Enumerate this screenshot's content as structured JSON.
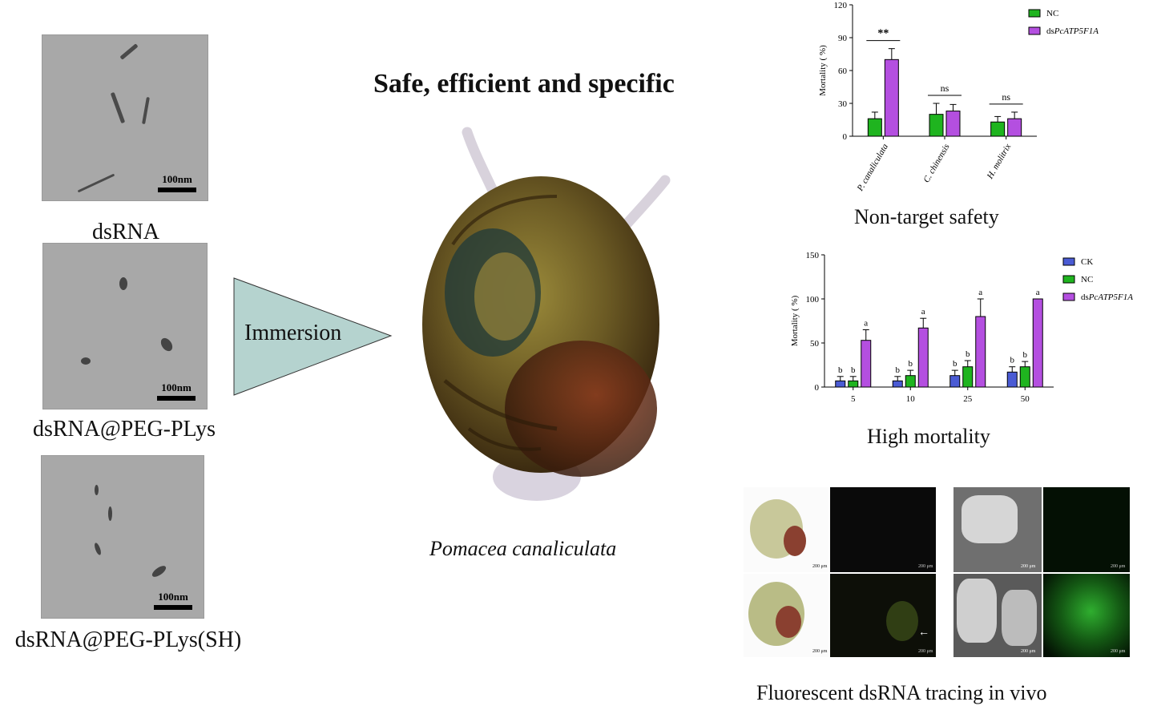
{
  "tem_panels": [
    {
      "label": "dsRNA",
      "scale": "100nm"
    },
    {
      "label": "dsRNA@PEG-PLys",
      "scale": "100nm"
    },
    {
      "label": "dsRNA@PEG-PLys(SH)",
      "scale": "100nm"
    }
  ],
  "arrow_label": "Immersion",
  "heading": "Safe, efficient and specific",
  "species_caption": "Pomacea canaliculata",
  "fluo_caption": "Fluorescent dsRNA tracing in vivo",
  "fluo_scale": "200 μm",
  "colors": {
    "CK": "#4a5bd4",
    "NC": "#1fb41f",
    "ds": "#b44fe0",
    "triangle": "#b5d3cf"
  },
  "chart_data": [
    {
      "type": "bar",
      "caption": "Non-target safety",
      "ylabel": "Mortality ( %)",
      "ylim": [
        0,
        120
      ],
      "yticks": [
        0,
        30,
        60,
        90,
        120
      ],
      "categories": [
        "P. canaliculata",
        "C. chinensis",
        "H. molitrix"
      ],
      "series": [
        {
          "name": "NC",
          "values": [
            16,
            20,
            13
          ],
          "errors": [
            6,
            10,
            5
          ]
        },
        {
          "name": "dsPcATP5F1A",
          "values": [
            70,
            23,
            16
          ],
          "errors": [
            10,
            6,
            6
          ]
        }
      ],
      "significance": [
        "**",
        "ns",
        "ns"
      ],
      "legend": "top-right"
    },
    {
      "type": "bar",
      "caption": "High mortality",
      "ylabel": "Mortality ( %)",
      "ylim": [
        0,
        150
      ],
      "yticks": [
        0,
        50,
        100,
        150
      ],
      "categories": [
        "5",
        "10",
        "25",
        "50"
      ],
      "series": [
        {
          "name": "CK",
          "values": [
            7,
            7,
            13,
            17
          ],
          "errors": [
            5,
            5,
            6,
            6
          ]
        },
        {
          "name": "NC",
          "values": [
            7,
            13,
            23,
            23
          ],
          "errors": [
            5,
            6,
            7,
            6
          ]
        },
        {
          "name": "dsPcATP5F1A",
          "values": [
            53,
            67,
            80,
            100
          ],
          "errors": [
            12,
            11,
            20,
            0
          ]
        }
      ],
      "letters": [
        [
          "b",
          "b",
          "a"
        ],
        [
          "b",
          "b",
          "a"
        ],
        [
          "b",
          "b",
          "a"
        ],
        [
          "b",
          "b",
          "a"
        ]
      ],
      "legend": "top-right"
    }
  ]
}
